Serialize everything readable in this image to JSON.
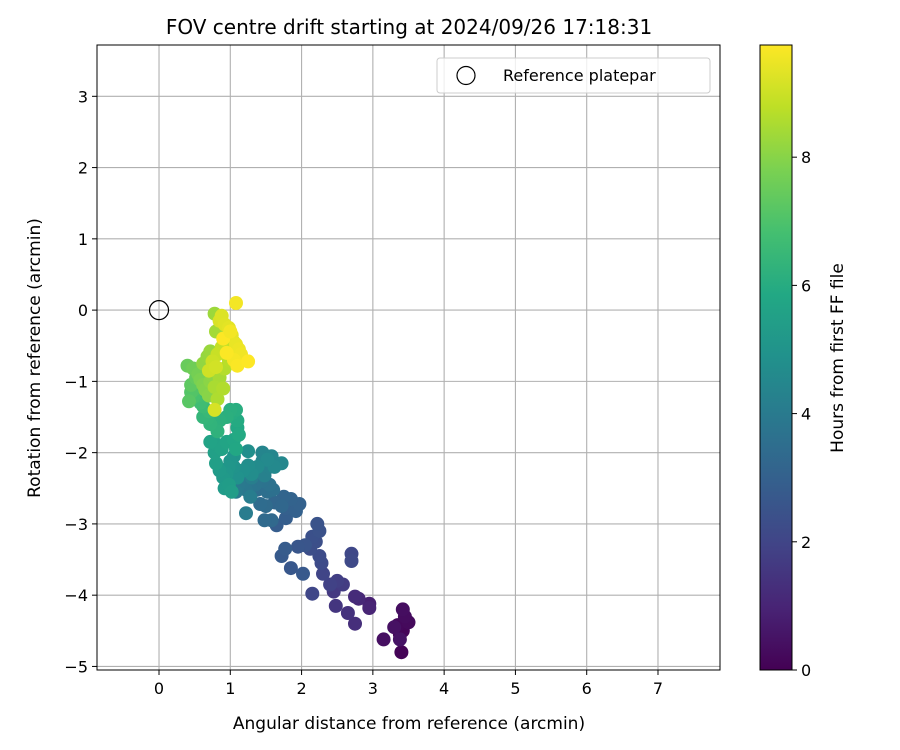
{
  "chart_data": {
    "type": "scatter",
    "title": "FOV centre drift starting at 2024/09/26 17:18:31",
    "xlabel": "Angular distance from reference (arcmin)",
    "ylabel": "Rotation from reference (arcmin)",
    "xlim": [
      -0.87,
      7.87
    ],
    "ylim": [
      -5.05,
      3.72
    ],
    "xticks": [
      0,
      1,
      2,
      3,
      4,
      5,
      6,
      7
    ],
    "yticks": [
      -5,
      -4,
      -3,
      -2,
      -1,
      0,
      1,
      2,
      3
    ],
    "grid": true,
    "legend": {
      "placement": "top-right",
      "entries": [
        "Reference platepar"
      ]
    },
    "reference_point": {
      "name": "Reference platepar",
      "x": 0,
      "y": 0
    },
    "colorbar": {
      "label": "Hours from first FF file",
      "min": 0,
      "max": 9.75,
      "ticks": [
        0,
        2,
        4,
        6,
        8
      ],
      "colormap": "viridis"
    },
    "series": [
      {
        "columns": [
          "x",
          "y",
          "hours"
        ],
        "points": [
          [
            3.4,
            -4.8,
            0.05
          ],
          [
            3.38,
            -4.55,
            0.1
          ],
          [
            3.42,
            -4.5,
            0.15
          ],
          [
            3.35,
            -4.42,
            0.2
          ],
          [
            3.5,
            -4.38,
            0.25
          ],
          [
            3.45,
            -4.3,
            0.3
          ],
          [
            3.42,
            -4.2,
            0.35
          ],
          [
            3.15,
            -4.62,
            0.4
          ],
          [
            3.3,
            -4.45,
            0.45
          ],
          [
            3.38,
            -4.62,
            0.5
          ],
          [
            2.95,
            -4.12,
            0.9
          ],
          [
            2.95,
            -4.18,
            1.0
          ],
          [
            2.8,
            -4.05,
            1.1
          ],
          [
            2.75,
            -4.02,
            1.2
          ],
          [
            2.75,
            -4.4,
            1.3
          ],
          [
            2.65,
            -4.25,
            1.4
          ],
          [
            2.48,
            -4.15,
            1.5
          ],
          [
            2.45,
            -3.95,
            1.6
          ],
          [
            2.58,
            -3.85,
            1.7
          ],
          [
            2.5,
            -3.8,
            1.8
          ],
          [
            2.4,
            -3.85,
            1.9
          ],
          [
            2.3,
            -3.7,
            2.0
          ],
          [
            2.15,
            -3.98,
            2.05
          ],
          [
            2.7,
            -3.42,
            2.1
          ],
          [
            2.7,
            -3.52,
            2.15
          ],
          [
            2.28,
            -3.55,
            2.2
          ],
          [
            2.25,
            -3.45,
            2.25
          ],
          [
            2.12,
            -3.35,
            2.3
          ],
          [
            2.2,
            -3.25,
            2.35
          ],
          [
            2.15,
            -3.18,
            2.4
          ],
          [
            2.25,
            -3.1,
            2.45
          ],
          [
            2.22,
            -3.0,
            2.5
          ],
          [
            2.05,
            -3.3,
            2.55
          ],
          [
            1.95,
            -3.32,
            2.6
          ],
          [
            1.85,
            -3.62,
            2.65
          ],
          [
            2.02,
            -3.7,
            2.7
          ],
          [
            1.72,
            -3.45,
            2.75
          ],
          [
            1.77,
            -3.35,
            2.8
          ],
          [
            1.65,
            -3.02,
            2.85
          ],
          [
            1.78,
            -2.92,
            2.9
          ],
          [
            1.78,
            -2.78,
            2.95
          ],
          [
            1.92,
            -2.82,
            3.0
          ],
          [
            1.97,
            -2.72,
            3.05
          ],
          [
            1.85,
            -2.65,
            3.1
          ],
          [
            1.75,
            -2.62,
            3.15
          ],
          [
            1.62,
            -2.7,
            3.2
          ],
          [
            1.72,
            -2.75,
            3.25
          ],
          [
            1.58,
            -2.95,
            3.3
          ],
          [
            1.48,
            -2.95,
            3.35
          ],
          [
            1.5,
            -2.75,
            3.4
          ],
          [
            1.42,
            -2.72,
            3.45
          ],
          [
            1.38,
            -2.52,
            3.5
          ],
          [
            1.52,
            -2.55,
            3.55
          ],
          [
            1.6,
            -2.52,
            3.6
          ],
          [
            1.55,
            -2.45,
            3.65
          ],
          [
            1.45,
            -2.4,
            3.7
          ],
          [
            1.35,
            -2.45,
            3.75
          ],
          [
            1.28,
            -2.48,
            3.8
          ],
          [
            1.22,
            -2.52,
            3.85
          ],
          [
            1.18,
            -2.42,
            3.9
          ],
          [
            1.12,
            -2.45,
            3.95
          ],
          [
            1.08,
            -2.55,
            4.0
          ],
          [
            1.22,
            -2.85,
            4.05
          ],
          [
            1.28,
            -2.62,
            4.1
          ],
          [
            1.3,
            -2.35,
            4.15
          ],
          [
            1.42,
            -2.25,
            4.2
          ],
          [
            1.48,
            -2.32,
            4.25
          ],
          [
            1.55,
            -2.2,
            4.3
          ],
          [
            1.45,
            -2.12,
            4.35
          ],
          [
            1.45,
            -2.0,
            4.4
          ],
          [
            1.58,
            -2.05,
            4.45
          ],
          [
            1.72,
            -2.15,
            4.5
          ],
          [
            1.62,
            -2.2,
            4.55
          ],
          [
            1.52,
            -2.1,
            4.6
          ],
          [
            1.38,
            -2.2,
            4.65
          ],
          [
            1.3,
            -2.3,
            4.7
          ],
          [
            1.25,
            -2.18,
            4.75
          ],
          [
            1.25,
            -1.98,
            4.8
          ],
          [
            1.18,
            -2.25,
            4.85
          ],
          [
            1.1,
            -2.35,
            4.9
          ],
          [
            1.05,
            -2.2,
            4.95
          ],
          [
            1.05,
            -2.05,
            5.0
          ],
          [
            1.0,
            -2.12,
            5.05
          ],
          [
            0.98,
            -2.2,
            5.1
          ],
          [
            0.95,
            -2.3,
            5.15
          ],
          [
            0.9,
            -2.35,
            5.2
          ],
          [
            0.85,
            -2.25,
            5.25
          ],
          [
            0.92,
            -2.5,
            5.3
          ],
          [
            0.98,
            -2.45,
            5.35
          ],
          [
            1.02,
            -2.55,
            5.4
          ],
          [
            0.8,
            -2.15,
            5.45
          ],
          [
            0.78,
            -2.0,
            5.5
          ],
          [
            0.8,
            -1.88,
            5.55
          ],
          [
            0.88,
            -1.95,
            5.6
          ],
          [
            0.72,
            -1.85,
            5.65
          ],
          [
            0.95,
            -1.85,
            5.7
          ],
          [
            1.05,
            -1.82,
            5.75
          ],
          [
            1.08,
            -1.95,
            5.8
          ],
          [
            1.1,
            -1.65,
            5.85
          ],
          [
            1.12,
            -1.75,
            5.9
          ],
          [
            1.1,
            -1.55,
            5.95
          ],
          [
            1.02,
            -1.45,
            6.0
          ],
          [
            1.08,
            -1.4,
            6.05
          ],
          [
            1.0,
            -1.4,
            6.1
          ],
          [
            0.95,
            -1.5,
            6.15
          ],
          [
            0.85,
            -1.55,
            6.2
          ],
          [
            0.82,
            -1.7,
            6.25
          ],
          [
            0.72,
            -1.6,
            6.3
          ],
          [
            0.68,
            -1.52,
            6.35
          ],
          [
            0.62,
            -1.5,
            6.4
          ],
          [
            0.7,
            -1.42,
            6.5
          ],
          [
            0.62,
            -1.35,
            6.6
          ],
          [
            0.58,
            -1.3,
            6.7
          ],
          [
            0.55,
            -1.2,
            6.8
          ],
          [
            0.48,
            -1.22,
            6.9
          ],
          [
            0.52,
            -1.1,
            7.0
          ],
          [
            0.45,
            -1.15,
            7.1
          ],
          [
            0.42,
            -1.28,
            7.2
          ],
          [
            0.45,
            -1.05,
            7.3
          ],
          [
            0.52,
            -0.95,
            7.4
          ],
          [
            0.4,
            -0.78,
            7.5
          ],
          [
            0.48,
            -0.82,
            7.6
          ],
          [
            0.55,
            -0.9,
            7.7
          ],
          [
            0.58,
            -0.98,
            7.8
          ],
          [
            0.62,
            -1.05,
            7.9
          ],
          [
            0.65,
            -1.12,
            7.95
          ],
          [
            0.7,
            -1.2,
            8.0
          ],
          [
            0.72,
            -1.0,
            8.05
          ],
          [
            0.75,
            -0.92,
            8.1
          ],
          [
            0.62,
            -0.75,
            8.15
          ],
          [
            0.68,
            -0.65,
            8.2
          ],
          [
            0.72,
            -0.58,
            8.25
          ],
          [
            0.78,
            -0.05,
            8.3
          ],
          [
            0.85,
            -0.25,
            8.35
          ],
          [
            0.8,
            -0.3,
            8.4
          ],
          [
            0.85,
            -0.95,
            8.45
          ],
          [
            0.78,
            -1.08,
            8.5
          ],
          [
            0.82,
            -1.25,
            8.55
          ],
          [
            0.9,
            -1.1,
            8.6
          ],
          [
            0.92,
            -0.82,
            8.65
          ],
          [
            0.98,
            -0.7,
            8.7
          ],
          [
            1.0,
            -0.55,
            8.75
          ],
          [
            1.05,
            -0.45,
            8.8
          ],
          [
            0.95,
            -0.42,
            8.85
          ],
          [
            0.88,
            -0.52,
            8.9
          ],
          [
            0.82,
            -0.62,
            8.95
          ],
          [
            0.75,
            -0.72,
            9.0
          ],
          [
            0.7,
            -0.85,
            9.05
          ],
          [
            0.8,
            -0.8,
            9.1
          ],
          [
            0.78,
            -1.4,
            9.15
          ],
          [
            0.85,
            -0.15,
            9.2
          ],
          [
            0.88,
            -0.08,
            9.25
          ],
          [
            0.92,
            -0.2,
            9.3
          ],
          [
            0.98,
            -0.25,
            9.35
          ],
          [
            1.02,
            -0.35,
            9.4
          ],
          [
            1.08,
            -0.48,
            9.45
          ],
          [
            1.12,
            -0.55,
            9.5
          ],
          [
            1.15,
            -0.62,
            9.55
          ],
          [
            1.08,
            0.1,
            9.6
          ],
          [
            1.05,
            -0.7,
            9.65
          ],
          [
            1.1,
            -0.78,
            9.7
          ],
          [
            0.95,
            -0.6,
            9.72
          ],
          [
            0.9,
            -0.4,
            9.74
          ],
          [
            1.25,
            -0.72,
            9.75
          ],
          [
            1.0,
            -0.3,
            9.6
          ]
        ]
      }
    ]
  }
}
